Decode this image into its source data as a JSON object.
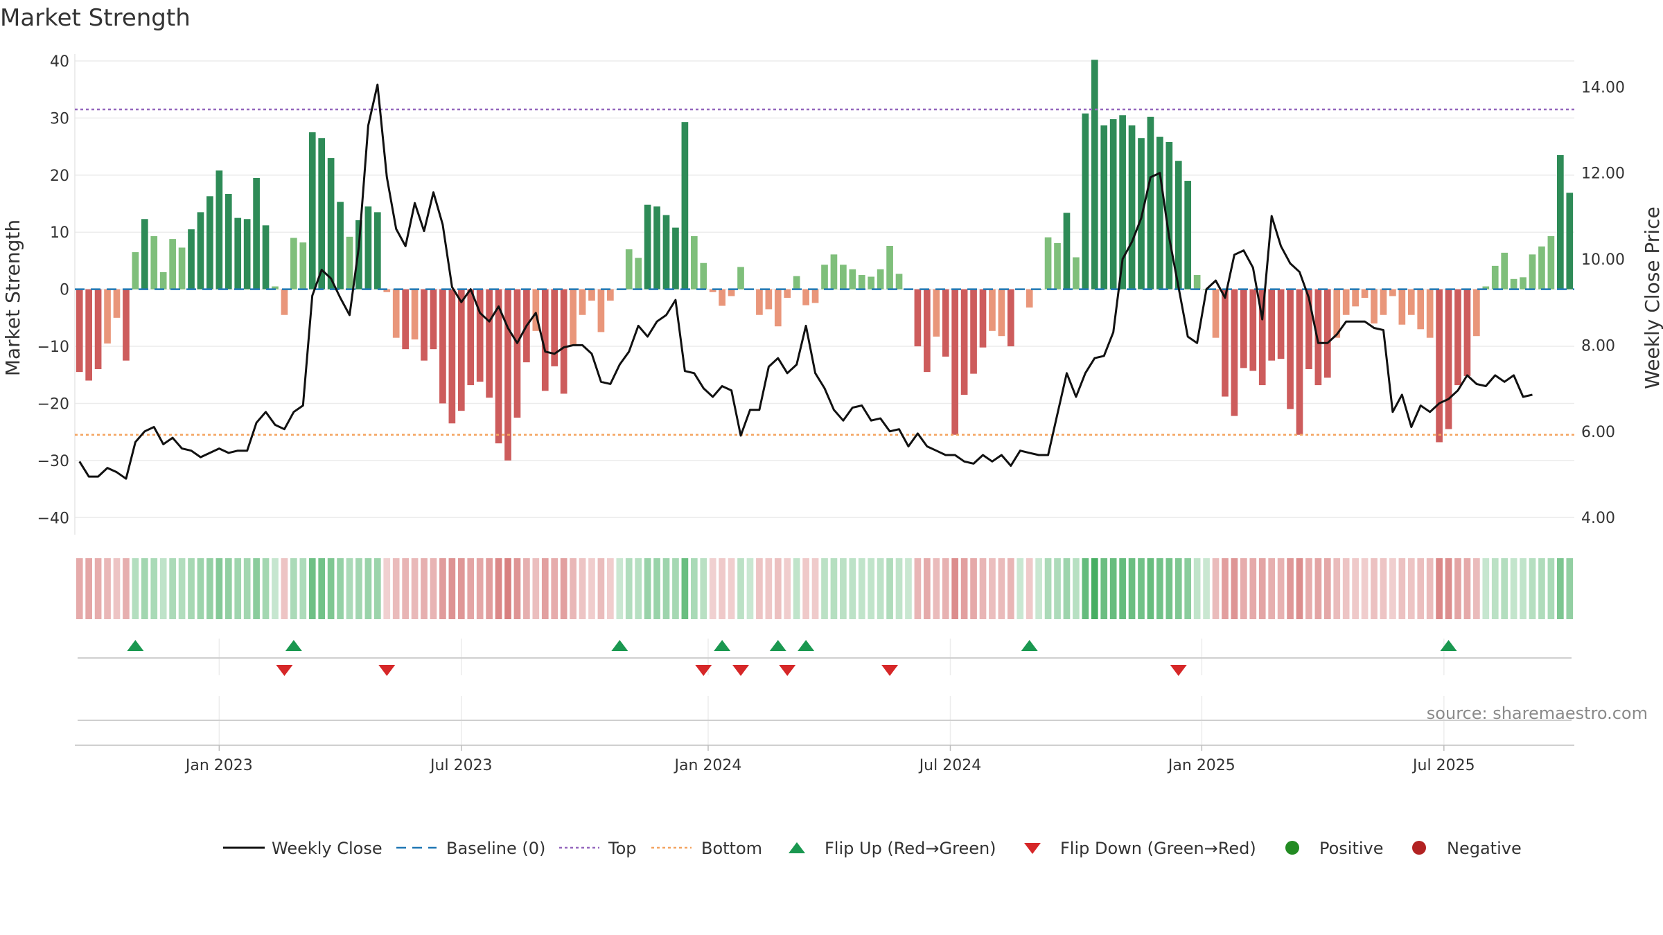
{
  "title": "Market Strength",
  "source": "source: sharemaestro.com",
  "colors": {
    "strong_green": "#2e8b57",
    "light_green": "#7fbf7b",
    "strong_red": "#cd5c5c",
    "light_red": "#e9967a",
    "price_line": "#111111",
    "baseline": "#1f77b4",
    "top": "#9467bd",
    "bottom": "#f4a460",
    "flip_up": "#1a9850",
    "flip_down": "#d62728",
    "positive": "#228b22",
    "negative": "#b22222"
  },
  "chart_data": {
    "type": "bar",
    "title": "Market Strength",
    "ylabel_left": "Market Strength",
    "ylabel_right": "Weekly Close Price",
    "left_ylim": [
      -43,
      40
    ],
    "right_ylim": [
      3.6,
      14.6
    ],
    "left_ticks": [
      "40",
      "30",
      "20",
      "10",
      "0",
      "−10",
      "−20",
      "−30",
      "−40"
    ],
    "left_tick_values": [
      40,
      30,
      20,
      10,
      0,
      -10,
      -20,
      -30,
      -40
    ],
    "right_ticks": [
      "14.00",
      "12.00",
      "10.00",
      "8.00",
      "6.00",
      "4.00"
    ],
    "right_tick_values": [
      14,
      12,
      10,
      8,
      6,
      4
    ],
    "x_ticks": [
      "Jan 2023",
      "Jul 2023",
      "Jan 2024",
      "Jul 2024",
      "Jan 2025",
      "Jul 2025"
    ],
    "x_tick_weeks": [
      15.5,
      41.5,
      68,
      94,
      121,
      147
    ],
    "top_threshold": 31.5,
    "bottom_threshold": -25.5,
    "strength": [
      -14.5,
      -16,
      -14,
      -9.5,
      -5,
      -12.5,
      6.5,
      12.3,
      9.3,
      3,
      8.8,
      7.3,
      10.5,
      13.5,
      16.3,
      20.8,
      16.7,
      12.5,
      12.3,
      19.5,
      11.2,
      0.5,
      -4.5,
      9,
      8.2,
      27.5,
      26.5,
      23,
      15.3,
      9.2,
      12.1,
      14.5,
      13.5,
      -0.5,
      -8.5,
      -10.5,
      -8.8,
      -12.5,
      -10.5,
      -20,
      -23.5,
      -21.3,
      -16.8,
      -16.2,
      -19,
      -27,
      -30,
      -22.5,
      -12.8,
      -7.3,
      -17.8,
      -13.5,
      -18.3,
      -9.8,
      -4.5,
      -2,
      -7.5,
      -2,
      0,
      7,
      5.5,
      14.8,
      14.5,
      13,
      10.8,
      29.3,
      9.3,
      4.6,
      -0.5,
      -2.9,
      -1.2,
      3.9,
      0,
      -4.5,
      -3.5,
      -6.5,
      -1.5,
      2.3,
      -2.8,
      -2.4,
      4.3,
      6.1,
      4.3,
      3.5,
      2.5,
      2.2,
      3.5,
      7.6,
      2.7,
      0,
      -10,
      -14.5,
      -8.3,
      -11.8,
      -25.5,
      -18.5,
      -14.8,
      -10.2,
      -7.3,
      -8.2,
      -10,
      0,
      -3.2,
      0,
      9.1,
      8.1,
      13.4,
      5.6,
      30.8,
      40.2,
      28.7,
      29.8,
      30.5,
      28.7,
      26.5,
      30.2,
      26.7,
      25.8,
      22.5,
      19,
      2.5,
      0,
      -8.5,
      -18.8,
      -22.2,
      -13.8,
      -14.3,
      -16.8,
      -12.5,
      -12.2,
      -21,
      -25.5,
      -14,
      -16.8,
      -15.5,
      -8.5,
      -4.5,
      -3,
      -1.5,
      -6,
      -4.5,
      -1.2,
      -6.2,
      -4.5,
      -7,
      -8.5,
      -26.8,
      -24.5,
      -16.8,
      -15.2,
      -8.2,
      0.5,
      4.1,
      6.4,
      1.8,
      2.1,
      6.1,
      7.5,
      9.3,
      23.5,
      16.9
    ],
    "weekly_close": [
      5.3,
      4.95,
      4.95,
      5.15,
      5.05,
      4.9,
      5.75,
      6.0,
      6.1,
      5.7,
      5.85,
      5.6,
      5.55,
      5.4,
      5.5,
      5.6,
      5.5,
      5.55,
      5.55,
      6.2,
      6.45,
      6.15,
      6.05,
      6.45,
      6.6,
      9.15,
      9.75,
      9.55,
      9.1,
      8.7,
      10.3,
      13.1,
      14.05,
      11.9,
      10.7,
      10.3,
      11.3,
      10.65,
      11.55,
      10.8,
      9.35,
      9.0,
      9.3,
      8.75,
      8.55,
      8.9,
      8.4,
      8.05,
      8.45,
      8.75,
      7.85,
      7.8,
      7.95,
      8.0,
      8.0,
      7.8,
      7.15,
      7.1,
      7.55,
      7.85,
      8.45,
      8.2,
      8.55,
      8.7,
      9.05,
      7.4,
      7.35,
      7.0,
      6.8,
      7.05,
      6.95,
      5.9,
      6.5,
      6.5,
      7.5,
      7.7,
      7.35,
      7.55,
      8.45,
      7.35,
      7.0,
      6.5,
      6.25,
      6.55,
      6.6,
      6.25,
      6.3,
      6.0,
      6.05,
      5.65,
      5.95,
      5.65,
      5.55,
      5.45,
      5.45,
      5.3,
      5.25,
      5.45,
      5.3,
      5.45,
      5.2,
      5.55,
      5.5,
      5.45,
      5.45,
      6.4,
      7.35,
      6.8,
      7.35,
      7.7,
      7.75,
      8.3,
      10.0,
      10.4,
      10.95,
      11.9,
      12.0,
      10.5,
      9.35,
      8.2,
      8.05,
      9.3,
      9.5,
      9.1,
      10.1,
      10.2,
      9.8,
      8.6,
      11.0,
      10.3,
      9.9,
      9.7,
      9.1,
      8.05,
      8.05,
      8.25,
      8.55,
      8.55,
      8.55,
      8.4,
      8.35,
      6.45,
      6.85,
      6.1,
      6.6,
      6.45,
      6.65,
      6.75,
      6.95,
      7.3,
      7.1,
      7.05,
      7.3,
      7.15,
      7.3,
      6.8,
      6.85
    ],
    "flip_up_weeks": [
      6,
      23,
      58,
      69,
      75,
      78,
      102,
      147
    ],
    "flip_down_weeks": [
      22,
      33,
      67,
      71,
      76,
      87,
      118
    ],
    "legend": [
      "Weekly Close",
      "Baseline (0)",
      "Top",
      "Bottom",
      "Flip Up (Red→Green)",
      "Flip Down (Green→Red)",
      "Positive",
      "Negative"
    ],
    "grid": true,
    "legend_position": "bottom"
  }
}
